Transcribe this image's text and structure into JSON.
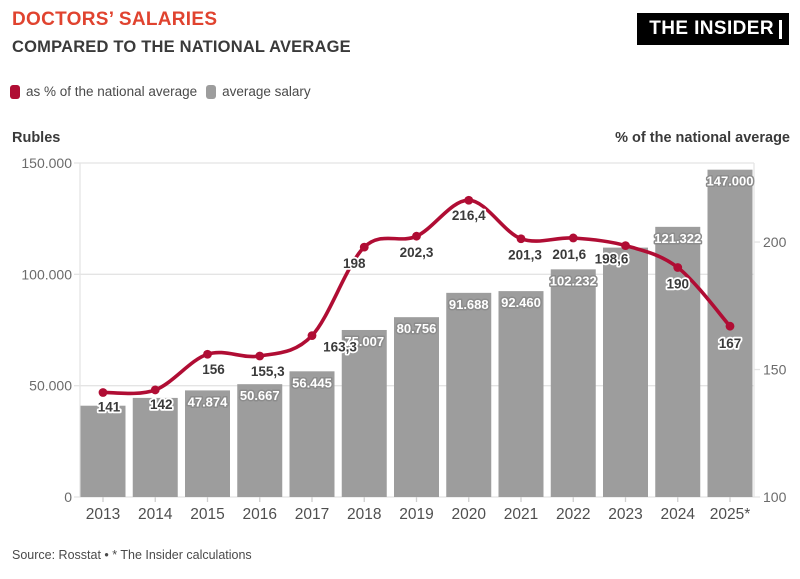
{
  "header": {
    "title": "DOCTORS’ SALARIES",
    "subtitle": "COMPARED TO THE NATIONAL AVERAGE",
    "logo": "THE INSIDER"
  },
  "colors": {
    "title_red": "#e0432f",
    "line_crimson": "#b00d34",
    "bar_gray": "#9d9d9d",
    "grid": "#e4e4e4",
    "tick_text": "#6b6b6b",
    "year_text": "#4f4f4f",
    "dark_text": "#3a3a3a",
    "bar_label_outline": "#8c8c8c"
  },
  "legend": [
    {
      "label": "as % of the national average",
      "color": "#b00d34",
      "series": "line"
    },
    {
      "label": "average salary",
      "color": "#9d9d9d",
      "series": "bar"
    }
  ],
  "axes": {
    "left_title": "Rubles",
    "right_title": "% of the national average",
    "left_ticks": [
      "150.000",
      "100.000",
      "50.000",
      "0"
    ],
    "right_ticks": [
      "200",
      "150",
      "100"
    ]
  },
  "footer": {
    "source": "Source: Rosstat • * The Insider calculations"
  },
  "chart_data": {
    "type": "bar+line",
    "categories": [
      "2013",
      "2014",
      "2015",
      "2016",
      "2017",
      "2018",
      "2019",
      "2020",
      "2021",
      "2022",
      "2023",
      "2024",
      "2025*"
    ],
    "series": [
      {
        "name": "average salary",
        "type": "bar",
        "axis": "left",
        "color": "#9d9d9d",
        "values": [
          41000,
          44500,
          47874,
          50667,
          56445,
          75007,
          80756,
          91688,
          92460,
          102232,
          112000,
          121322,
          147000
        ],
        "labels": [
          "",
          "",
          "47.874",
          "50.667",
          "56.445",
          "75.007",
          "80.756",
          "91.688",
          "92.460",
          "102.232",
          "",
          "121.322",
          "147.000"
        ]
      },
      {
        "name": "as % of the national average",
        "type": "line",
        "axis": "right",
        "color": "#b00d34",
        "values": [
          141,
          142,
          156,
          155.3,
          163.3,
          198,
          202.3,
          216.4,
          201.3,
          201.6,
          198.6,
          190,
          167
        ],
        "labels": [
          "141",
          "142",
          "156",
          "155,3",
          "163,3",
          "198",
          "202,3",
          "216,4",
          "201,3",
          "201,6",
          "198,6",
          "190",
          "167"
        ],
        "label_offsets": [
          [
            6,
            14
          ],
          [
            6,
            14
          ],
          [
            6,
            15
          ],
          [
            8,
            15
          ],
          [
            28,
            11
          ],
          [
            -10,
            16
          ],
          [
            0,
            16
          ],
          [
            0,
            15
          ],
          [
            4,
            16
          ],
          [
            -4,
            16
          ],
          [
            -14,
            13
          ],
          [
            0,
            16
          ],
          [
            0,
            17
          ]
        ]
      }
    ],
    "left_axis": {
      "min": 0,
      "max": 150000,
      "ticks": [
        150000,
        100000,
        50000,
        0
      ]
    },
    "right_axis": {
      "min": 100,
      "max": 231,
      "ticks": [
        200,
        150,
        100
      ]
    },
    "grid": true,
    "legend_position": "top-left",
    "note": "bars without labels (2013, 2014, 2023) have values estimated from pixel heights"
  }
}
